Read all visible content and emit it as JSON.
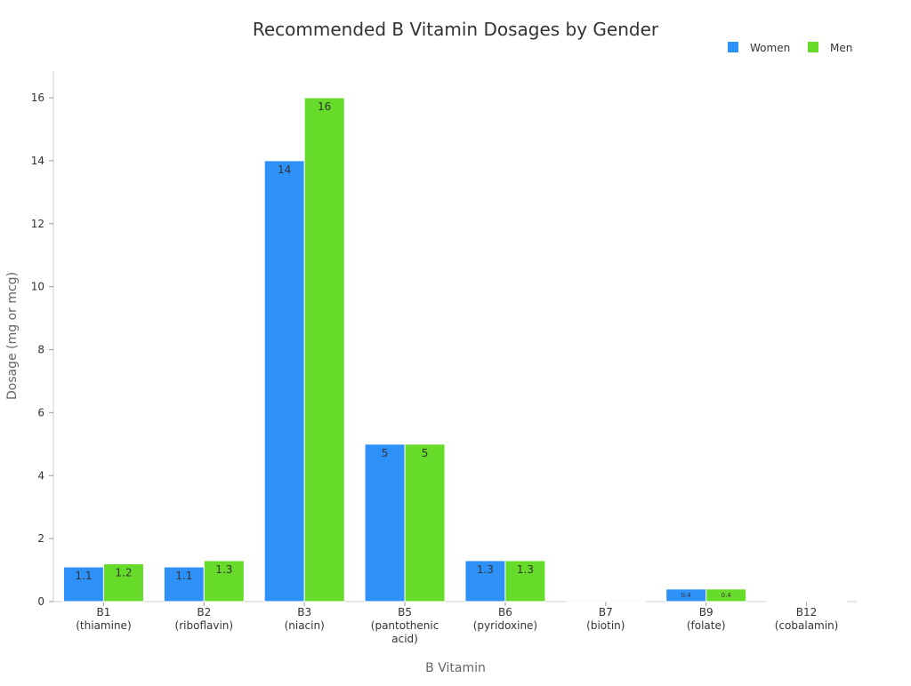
{
  "chart_data": {
    "type": "bar",
    "title": "Recommended B Vitamin Dosages by Gender",
    "xlabel": "B Vitamin",
    "ylabel": "Dosage (mg or mcg)",
    "categories": [
      "B1\n(thiamine)",
      "B2\n(riboflavin)",
      "B3\n(niacin)",
      "B5\n(pantothenic\nacid)",
      "B6\n(pyridoxine)",
      "B7\n(biotin)",
      "B9\n(folate)",
      "B12\n(cobalamin)"
    ],
    "series": [
      {
        "name": "Women",
        "color": "#2e91f7",
        "values": [
          1.1,
          1.1,
          14,
          5,
          1.3,
          0.03,
          0.4,
          0.0024
        ]
      },
      {
        "name": "Men",
        "color": "#67db29",
        "values": [
          1.2,
          1.3,
          16,
          5,
          1.3,
          0.03,
          0.4,
          0.0024
        ]
      }
    ],
    "ylim": [
      0,
      16.8
    ],
    "yticks": [
      0,
      2,
      4,
      6,
      8,
      10,
      12,
      14,
      16
    ],
    "grid": false,
    "legend": "top-right"
  }
}
